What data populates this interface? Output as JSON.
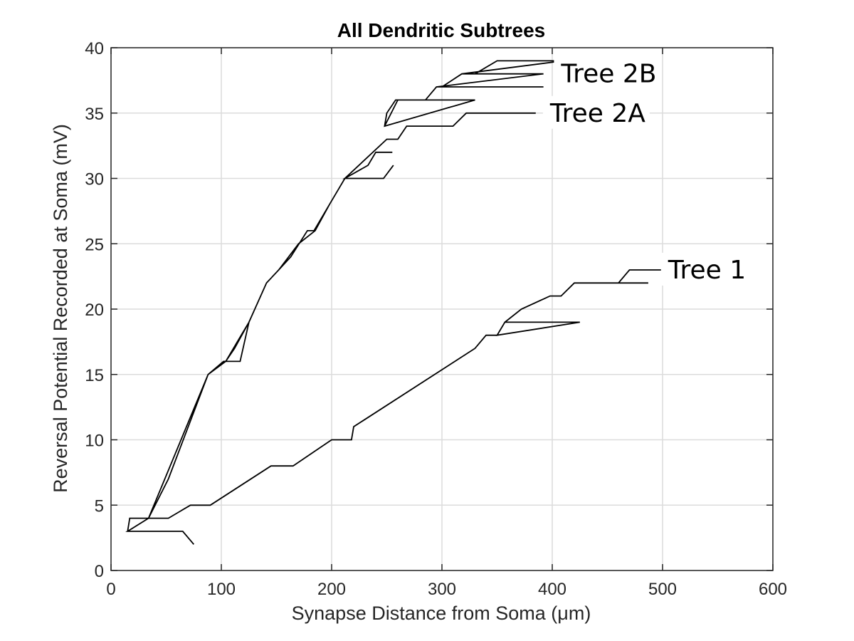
{
  "chart_data": {
    "type": "line",
    "title": "All Dendritic Subtrees",
    "xlabel": "Synapse Distance from Soma (μm)",
    "ylabel": "Reversal Potential Recorded at Soma (mV)",
    "xlim": [
      0,
      600
    ],
    "ylim": [
      0,
      40
    ],
    "xticks": [
      0,
      100,
      200,
      300,
      400,
      500,
      600
    ],
    "yticks": [
      0,
      5,
      10,
      15,
      20,
      25,
      30,
      35,
      40
    ],
    "grid": true,
    "line_color": "#000000",
    "grid_color": "#dcdcdc",
    "series": [
      {
        "name": "Tree 1",
        "label_at": [
          505,
          23
        ],
        "x": [
          15,
          17,
          52,
          72,
          90,
          145,
          165,
          200,
          218,
          220,
          330,
          340,
          350,
          357,
          420,
          425,
          350,
          357,
          372,
          398,
          408,
          420,
          460,
          470,
          502,
          470,
          460,
          487
        ],
        "y": [
          3,
          4,
          4,
          5,
          5,
          8,
          8,
          10,
          10,
          11,
          17,
          18,
          18,
          19,
          19,
          19,
          18,
          19,
          20,
          21,
          21,
          22,
          22,
          23,
          23,
          23,
          22,
          22
        ]
      },
      {
        "name": "Tree 2A",
        "label_at": [
          398,
          35
        ],
        "x": [
          15,
          65,
          75,
          65,
          15,
          34,
          52,
          88,
          104,
          112,
          118,
          104,
          112,
          125,
          141,
          152,
          163,
          178,
          184,
          198,
          212,
          233,
          240,
          255,
          240,
          233,
          212,
          247,
          256,
          247,
          212,
          198,
          184,
          178,
          163,
          152,
          141,
          125,
          118,
          112,
          104,
          88,
          52,
          34,
          15,
          34,
          88,
          102,
          117,
          125,
          141,
          152,
          170,
          185,
          198,
          212,
          250,
          260,
          268,
          270,
          310,
          322,
          332,
          385
        ],
        "y": [
          3,
          3,
          2,
          3,
          3,
          4,
          7,
          15,
          16,
          17,
          18,
          16,
          17,
          19,
          22,
          23,
          24,
          26,
          26,
          28,
          30,
          31,
          32,
          32,
          32,
          31,
          30,
          30,
          31,
          30,
          30,
          28,
          26,
          26,
          24,
          23,
          22,
          19,
          18,
          17,
          16,
          15,
          7,
          4,
          3,
          4,
          15,
          16,
          16,
          19,
          22,
          23,
          25,
          26,
          28,
          30,
          33,
          33,
          34,
          34,
          34,
          35,
          35,
          35
        ]
      },
      {
        "name": "Tree 2B",
        "label_at": [
          408,
          38
        ],
        "x": [
          248,
          260,
          287,
          330,
          248,
          250,
          258,
          285,
          295,
          340,
          300,
          318,
          330,
          350,
          410,
          318,
          330,
          392,
          295,
          392
        ],
        "y": [
          34,
          36,
          36,
          36,
          34,
          35,
          36,
          36,
          37,
          37,
          37,
          38,
          38,
          39,
          39,
          38,
          38,
          38,
          37,
          37
        ]
      }
    ]
  }
}
